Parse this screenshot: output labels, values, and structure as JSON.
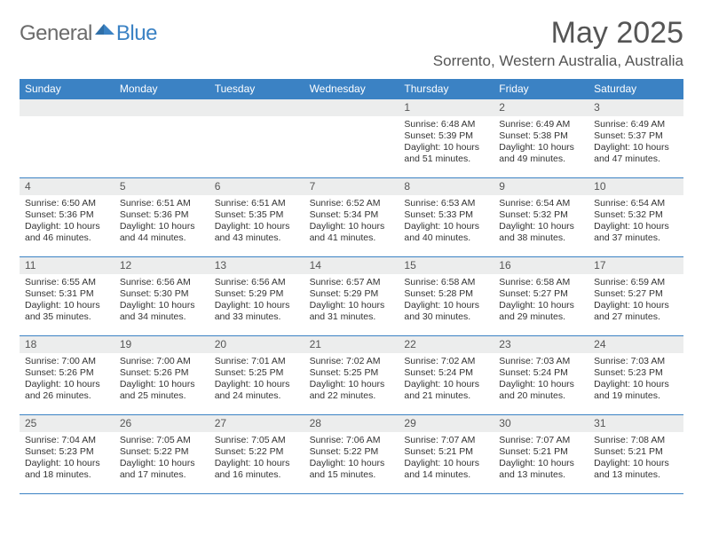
{
  "brand": {
    "general": "General",
    "blue": "Blue"
  },
  "title": "May 2025",
  "location": "Sorrento, Western Australia, Australia",
  "day_names": [
    "Sunday",
    "Monday",
    "Tuesday",
    "Wednesday",
    "Thursday",
    "Friday",
    "Saturday"
  ],
  "colors": {
    "header_bg": "#3b82c4",
    "daynum_bg": "#eceded",
    "text": "#333333",
    "title_text": "#555555"
  },
  "weeks": [
    [
      {
        "n": "",
        "sunrise": "",
        "sunset": "",
        "dl1": "",
        "dl2": ""
      },
      {
        "n": "",
        "sunrise": "",
        "sunset": "",
        "dl1": "",
        "dl2": ""
      },
      {
        "n": "",
        "sunrise": "",
        "sunset": "",
        "dl1": "",
        "dl2": ""
      },
      {
        "n": "",
        "sunrise": "",
        "sunset": "",
        "dl1": "",
        "dl2": ""
      },
      {
        "n": "1",
        "sunrise": "Sunrise: 6:48 AM",
        "sunset": "Sunset: 5:39 PM",
        "dl1": "Daylight: 10 hours",
        "dl2": "and 51 minutes."
      },
      {
        "n": "2",
        "sunrise": "Sunrise: 6:49 AM",
        "sunset": "Sunset: 5:38 PM",
        "dl1": "Daylight: 10 hours",
        "dl2": "and 49 minutes."
      },
      {
        "n": "3",
        "sunrise": "Sunrise: 6:49 AM",
        "sunset": "Sunset: 5:37 PM",
        "dl1": "Daylight: 10 hours",
        "dl2": "and 47 minutes."
      }
    ],
    [
      {
        "n": "4",
        "sunrise": "Sunrise: 6:50 AM",
        "sunset": "Sunset: 5:36 PM",
        "dl1": "Daylight: 10 hours",
        "dl2": "and 46 minutes."
      },
      {
        "n": "5",
        "sunrise": "Sunrise: 6:51 AM",
        "sunset": "Sunset: 5:36 PM",
        "dl1": "Daylight: 10 hours",
        "dl2": "and 44 minutes."
      },
      {
        "n": "6",
        "sunrise": "Sunrise: 6:51 AM",
        "sunset": "Sunset: 5:35 PM",
        "dl1": "Daylight: 10 hours",
        "dl2": "and 43 minutes."
      },
      {
        "n": "7",
        "sunrise": "Sunrise: 6:52 AM",
        "sunset": "Sunset: 5:34 PM",
        "dl1": "Daylight: 10 hours",
        "dl2": "and 41 minutes."
      },
      {
        "n": "8",
        "sunrise": "Sunrise: 6:53 AM",
        "sunset": "Sunset: 5:33 PM",
        "dl1": "Daylight: 10 hours",
        "dl2": "and 40 minutes."
      },
      {
        "n": "9",
        "sunrise": "Sunrise: 6:54 AM",
        "sunset": "Sunset: 5:32 PM",
        "dl1": "Daylight: 10 hours",
        "dl2": "and 38 minutes."
      },
      {
        "n": "10",
        "sunrise": "Sunrise: 6:54 AM",
        "sunset": "Sunset: 5:32 PM",
        "dl1": "Daylight: 10 hours",
        "dl2": "and 37 minutes."
      }
    ],
    [
      {
        "n": "11",
        "sunrise": "Sunrise: 6:55 AM",
        "sunset": "Sunset: 5:31 PM",
        "dl1": "Daylight: 10 hours",
        "dl2": "and 35 minutes."
      },
      {
        "n": "12",
        "sunrise": "Sunrise: 6:56 AM",
        "sunset": "Sunset: 5:30 PM",
        "dl1": "Daylight: 10 hours",
        "dl2": "and 34 minutes."
      },
      {
        "n": "13",
        "sunrise": "Sunrise: 6:56 AM",
        "sunset": "Sunset: 5:29 PM",
        "dl1": "Daylight: 10 hours",
        "dl2": "and 33 minutes."
      },
      {
        "n": "14",
        "sunrise": "Sunrise: 6:57 AM",
        "sunset": "Sunset: 5:29 PM",
        "dl1": "Daylight: 10 hours",
        "dl2": "and 31 minutes."
      },
      {
        "n": "15",
        "sunrise": "Sunrise: 6:58 AM",
        "sunset": "Sunset: 5:28 PM",
        "dl1": "Daylight: 10 hours",
        "dl2": "and 30 minutes."
      },
      {
        "n": "16",
        "sunrise": "Sunrise: 6:58 AM",
        "sunset": "Sunset: 5:27 PM",
        "dl1": "Daylight: 10 hours",
        "dl2": "and 29 minutes."
      },
      {
        "n": "17",
        "sunrise": "Sunrise: 6:59 AM",
        "sunset": "Sunset: 5:27 PM",
        "dl1": "Daylight: 10 hours",
        "dl2": "and 27 minutes."
      }
    ],
    [
      {
        "n": "18",
        "sunrise": "Sunrise: 7:00 AM",
        "sunset": "Sunset: 5:26 PM",
        "dl1": "Daylight: 10 hours",
        "dl2": "and 26 minutes."
      },
      {
        "n": "19",
        "sunrise": "Sunrise: 7:00 AM",
        "sunset": "Sunset: 5:26 PM",
        "dl1": "Daylight: 10 hours",
        "dl2": "and 25 minutes."
      },
      {
        "n": "20",
        "sunrise": "Sunrise: 7:01 AM",
        "sunset": "Sunset: 5:25 PM",
        "dl1": "Daylight: 10 hours",
        "dl2": "and 24 minutes."
      },
      {
        "n": "21",
        "sunrise": "Sunrise: 7:02 AM",
        "sunset": "Sunset: 5:25 PM",
        "dl1": "Daylight: 10 hours",
        "dl2": "and 22 minutes."
      },
      {
        "n": "22",
        "sunrise": "Sunrise: 7:02 AM",
        "sunset": "Sunset: 5:24 PM",
        "dl1": "Daylight: 10 hours",
        "dl2": "and 21 minutes."
      },
      {
        "n": "23",
        "sunrise": "Sunrise: 7:03 AM",
        "sunset": "Sunset: 5:24 PM",
        "dl1": "Daylight: 10 hours",
        "dl2": "and 20 minutes."
      },
      {
        "n": "24",
        "sunrise": "Sunrise: 7:03 AM",
        "sunset": "Sunset: 5:23 PM",
        "dl1": "Daylight: 10 hours",
        "dl2": "and 19 minutes."
      }
    ],
    [
      {
        "n": "25",
        "sunrise": "Sunrise: 7:04 AM",
        "sunset": "Sunset: 5:23 PM",
        "dl1": "Daylight: 10 hours",
        "dl2": "and 18 minutes."
      },
      {
        "n": "26",
        "sunrise": "Sunrise: 7:05 AM",
        "sunset": "Sunset: 5:22 PM",
        "dl1": "Daylight: 10 hours",
        "dl2": "and 17 minutes."
      },
      {
        "n": "27",
        "sunrise": "Sunrise: 7:05 AM",
        "sunset": "Sunset: 5:22 PM",
        "dl1": "Daylight: 10 hours",
        "dl2": "and 16 minutes."
      },
      {
        "n": "28",
        "sunrise": "Sunrise: 7:06 AM",
        "sunset": "Sunset: 5:22 PM",
        "dl1": "Daylight: 10 hours",
        "dl2": "and 15 minutes."
      },
      {
        "n": "29",
        "sunrise": "Sunrise: 7:07 AM",
        "sunset": "Sunset: 5:21 PM",
        "dl1": "Daylight: 10 hours",
        "dl2": "and 14 minutes."
      },
      {
        "n": "30",
        "sunrise": "Sunrise: 7:07 AM",
        "sunset": "Sunset: 5:21 PM",
        "dl1": "Daylight: 10 hours",
        "dl2": "and 13 minutes."
      },
      {
        "n": "31",
        "sunrise": "Sunrise: 7:08 AM",
        "sunset": "Sunset: 5:21 PM",
        "dl1": "Daylight: 10 hours",
        "dl2": "and 13 minutes."
      }
    ]
  ]
}
